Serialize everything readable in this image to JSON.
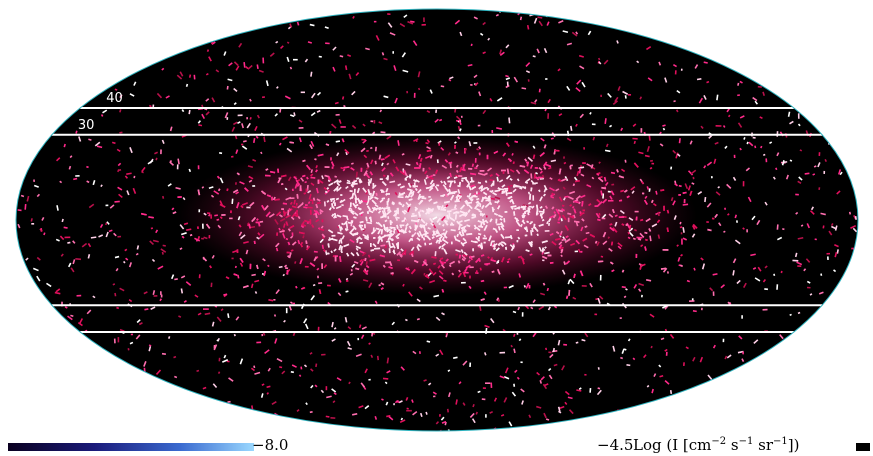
{
  "map": {
    "projection": "Mollweide all-sky",
    "colors": {
      "background": "#000000",
      "low": "#8a0a3a",
      "mid": "#ff2a8a",
      "high": "#ffe6f2",
      "outline": "#2fb4c0",
      "latitude_line": "#ffffff"
    },
    "latitude_lines_deg": [
      40,
      30,
      -30,
      -40
    ],
    "latitude_labels": [
      "40",
      "30"
    ]
  },
  "colorbar": {
    "min_label": "−8.0",
    "max_label": "−4.5",
    "unit_text": "Log (I [cm",
    "unit_exp1": "−2",
    "unit_mid1": " s",
    "unit_exp2": "−1",
    "unit_mid2": " sr",
    "unit_exp3": "−1",
    "unit_end": "])",
    "gradient_colors": [
      "#0a0020",
      "#1a1a7a",
      "#3a6ad0",
      "#9ad8ff"
    ]
  }
}
